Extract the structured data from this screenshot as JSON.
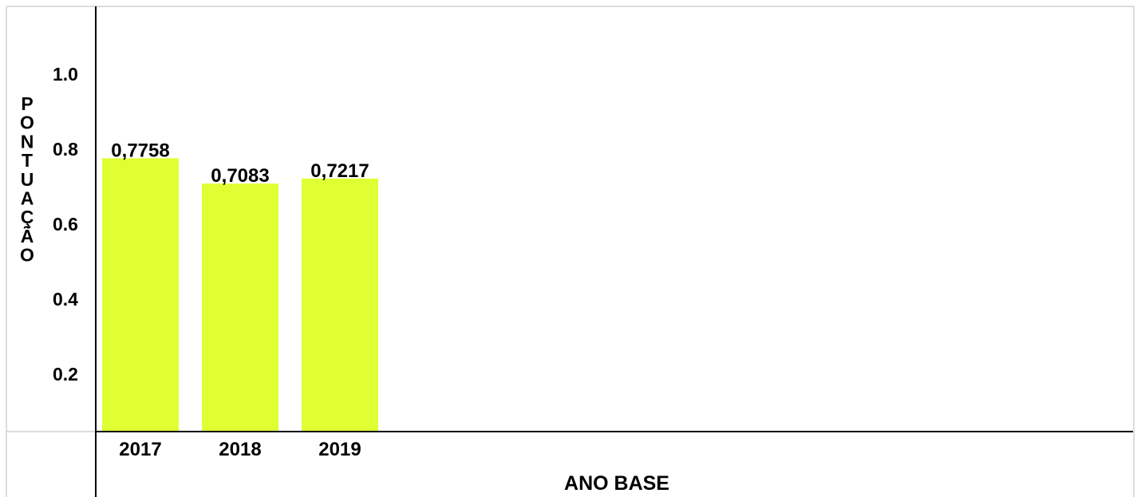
{
  "chart_data": {
    "type": "bar",
    "title": "",
    "xlabel": "ANO BASE",
    "ylabel": "PONTUAÇÃO",
    "categories": [
      "2017",
      "2018",
      "2019"
    ],
    "values": [
      0.7758,
      0.7083,
      0.7217
    ],
    "value_labels": [
      "0,7758",
      "0,7083",
      "0,7217"
    ],
    "y_ticks": [
      0.2,
      0.4,
      0.6,
      0.8,
      1.0
    ],
    "y_tick_labels": [
      "0.2",
      "0.4",
      "0.6",
      "0.8",
      "1.0"
    ],
    "ylim": [
      0,
      1.15
    ],
    "grid": false,
    "legend": "none",
    "bar_color": "#dfff33",
    "frame_color": "#d0d0d0",
    "axis_color": "#000000"
  }
}
